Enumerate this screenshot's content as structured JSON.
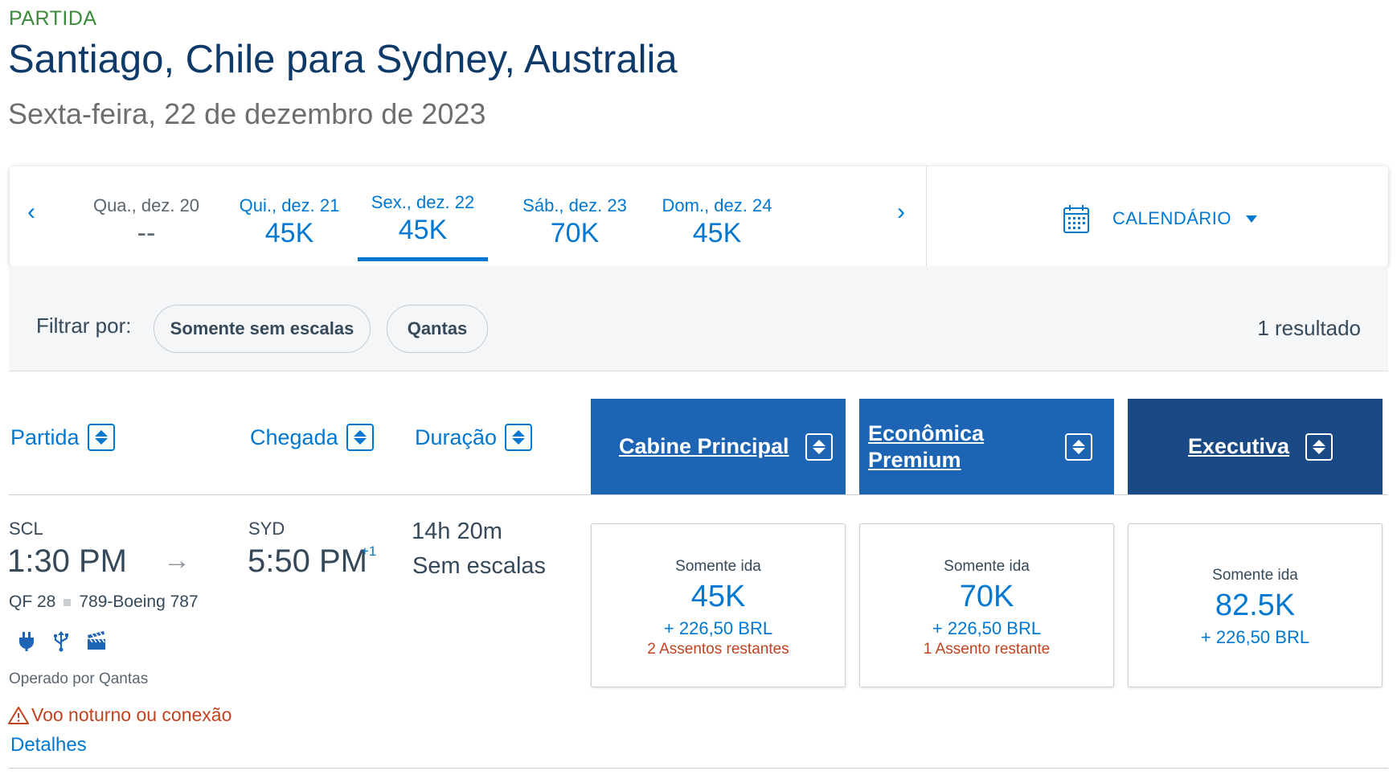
{
  "header": {
    "eyebrow": "PARTIDA",
    "route": "Santiago, Chile para Sydney, Australia",
    "date": "Sexta-feira, 22 de dezembro de 2023"
  },
  "carousel": {
    "prev_icon": "chevron-left-icon",
    "next_icon": "chevron-right-icon",
    "prev": "‹",
    "next": "›",
    "days": [
      {
        "label": "Qua., dez. 20",
        "value": "--",
        "state": "inactive"
      },
      {
        "label": "Qui., dez. 21",
        "value": "45K",
        "state": "normal"
      },
      {
        "label": "Sex., dez. 22",
        "value": "45K",
        "state": "selected"
      },
      {
        "label": "Sáb., dez. 23",
        "value": "70K",
        "state": "normal"
      },
      {
        "label": "Dom., dez. 24",
        "value": "45K",
        "state": "normal"
      }
    ],
    "calendar_label": "CALENDÁRIO",
    "calendar_icon": "calendar-icon"
  },
  "filters": {
    "label": "Filtrar por:",
    "chips": [
      "Somente sem escalas",
      "Qantas"
    ],
    "result_count": "1 resultado"
  },
  "columns": {
    "departure": "Partida",
    "arrival": "Chegada",
    "duration": "Duração",
    "cabins": [
      "Cabine Principal",
      "Econômica Premium",
      "Executiva"
    ]
  },
  "flight": {
    "origin_code": "SCL",
    "origin_time": "1:30 PM",
    "arrow": "→",
    "dest_code": "SYD",
    "dest_time": "5:50 PM",
    "day_offset": "+1",
    "duration": "14h 20m",
    "stops": "Sem escalas",
    "flight_number": "QF 28",
    "aircraft": "789-Boeing 787",
    "amenities": [
      "power-icon",
      "usb-icon",
      "entertainment-icon"
    ],
    "operator": "Operado por Qantas",
    "warning": "Voo noturno ou conexão",
    "details": "Detalhes"
  },
  "fares": [
    {
      "type": "Somente ida",
      "price": "45K",
      "tax": "+ 226,50 BRL",
      "seats": "2 Assentos restantes"
    },
    {
      "type": "Somente ida",
      "price": "70K",
      "tax": "+ 226,50 BRL",
      "seats": "1 Assento restante"
    },
    {
      "type": "Somente ida",
      "price": "82.5K",
      "tax": "+ 226,50 BRL",
      "seats": ""
    }
  ],
  "colors": {
    "brand_blue": "#0078d2",
    "cabin_header": "#1d64b4",
    "cabin_header_exec": "#1a4a85",
    "title_navy": "#0e3a69",
    "eyebrow_green": "#3c8a3c",
    "warning_red": "#c3421f"
  }
}
